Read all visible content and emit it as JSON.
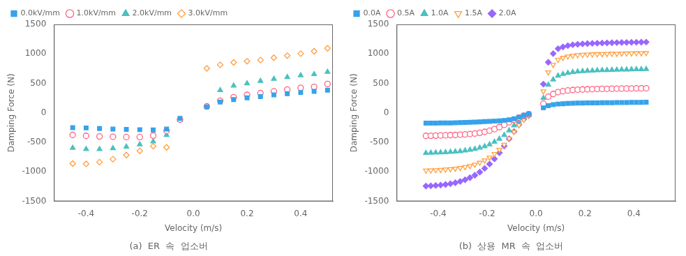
{
  "chart_data": [
    {
      "type": "scatter",
      "title": "(a)  ER  속  업소버",
      "x_label": "Velocity (m/s)",
      "y_label": "Damping Force (N)",
      "xlim": [
        -0.52,
        0.52
      ],
      "ylim": [
        -1500,
        1500
      ],
      "xticks": [
        -0.4,
        -0.2,
        {
          "value": 0,
          "label": "0.0"
        },
        0.2,
        0.4
      ],
      "yticks": [
        -1500,
        -1000,
        -500,
        0,
        500,
        1000,
        1500
      ],
      "grid": false,
      "legend": "upper left",
      "series": [
        {
          "name": "0.0kV/mm",
          "marker": "square_filled",
          "x": [
            -0.45,
            -0.4,
            -0.35,
            -0.3,
            -0.25,
            -0.2,
            -0.15,
            -0.1,
            -0.05,
            0.05,
            0.1,
            0.15,
            0.2,
            0.25,
            0.3,
            0.35,
            0.4,
            0.45,
            0.5
          ],
          "values": [
            -250,
            -255,
            -265,
            -275,
            -280,
            -285,
            -290,
            -275,
            -95,
            100,
            185,
            225,
            255,
            275,
            305,
            325,
            345,
            365,
            385
          ]
        },
        {
          "name": "1.0kV/mm",
          "marker": "circle_open",
          "x": [
            -0.45,
            -0.4,
            -0.35,
            -0.3,
            -0.25,
            -0.2,
            -0.15,
            -0.1,
            -0.05,
            0.05,
            0.1,
            0.15,
            0.2,
            0.25,
            0.3,
            0.35,
            0.4,
            0.45,
            0.5
          ],
          "values": [
            -375,
            -390,
            -400,
            -405,
            -410,
            -410,
            -385,
            -305,
            -115,
            110,
            205,
            265,
            305,
            335,
            365,
            395,
            425,
            440,
            490
          ]
        },
        {
          "name": "2.0kV/mm",
          "marker": "triangle_filled",
          "x": [
            -0.45,
            -0.4,
            -0.35,
            -0.3,
            -0.25,
            -0.2,
            -0.15,
            -0.1,
            -0.05,
            0.05,
            0.1,
            0.15,
            0.2,
            0.25,
            0.3,
            0.35,
            0.4,
            0.45,
            0.5
          ],
          "values": [
            -595,
            -615,
            -615,
            -600,
            -575,
            -535,
            -485,
            -375,
            -125,
            110,
            385,
            460,
            500,
            540,
            575,
            605,
            635,
            655,
            695
          ]
        },
        {
          "name": "3.0kV/mm",
          "marker": "diamond_open",
          "x": [
            -0.45,
            -0.4,
            -0.35,
            -0.3,
            -0.25,
            -0.2,
            -0.15,
            -0.1,
            0.05,
            0.1,
            0.15,
            0.2,
            0.25,
            0.3,
            0.35,
            0.4,
            0.45,
            0.5
          ],
          "values": [
            -860,
            -865,
            -835,
            -785,
            -715,
            -645,
            -565,
            -585,
            755,
            815,
            855,
            875,
            895,
            935,
            970,
            1005,
            1045,
            1095
          ]
        }
      ]
    },
    {
      "type": "scatter",
      "title": "(b)  상용  MR  속  업소버",
      "x_label": "Velocity (m/s)",
      "y_label": "Damping Force (N)",
      "xlim": [
        -0.57,
        0.57
      ],
      "ylim": [
        -1500,
        1500
      ],
      "xticks": [
        -0.4,
        -0.2,
        {
          "value": 0,
          "label": "0.0"
        },
        0.2,
        0.4
      ],
      "yticks": [
        -1500,
        -1000,
        -500,
        0,
        500,
        1000,
        1500
      ],
      "grid": false,
      "legend": "upper left",
      "series": [
        {
          "name": "0.0A",
          "marker": "square_filled",
          "x": [
            -0.45,
            -0.43,
            -0.41,
            -0.39,
            -0.37,
            -0.35,
            -0.33,
            -0.31,
            -0.29,
            -0.27,
            -0.25,
            -0.23,
            -0.21,
            -0.19,
            -0.17,
            -0.15,
            -0.13,
            -0.11,
            -0.09,
            -0.07,
            -0.05,
            -0.03,
            0.03,
            0.05,
            0.07,
            0.09,
            0.11,
            0.13,
            0.15,
            0.17,
            0.19,
            0.21,
            0.23,
            0.25,
            0.27,
            0.29,
            0.31,
            0.33,
            0.35,
            0.37,
            0.39,
            0.41,
            0.43,
            0.45
          ],
          "values": [
            -175,
            -175,
            -175,
            -172,
            -170,
            -170,
            -168,
            -165,
            -162,
            -158,
            -155,
            -152,
            -148,
            -145,
            -140,
            -135,
            -128,
            -118,
            -100,
            -72,
            -42,
            -18,
            85,
            122,
            140,
            150,
            155,
            160,
            163,
            165,
            167,
            168,
            169,
            170,
            171,
            172,
            173,
            174,
            175,
            176,
            177,
            178,
            179,
            180
          ]
        },
        {
          "name": "0.5A",
          "marker": "circle_open",
          "x": [
            -0.45,
            -0.43,
            -0.41,
            -0.39,
            -0.37,
            -0.35,
            -0.33,
            -0.31,
            -0.29,
            -0.27,
            -0.25,
            -0.23,
            -0.21,
            -0.19,
            -0.17,
            -0.15,
            -0.13,
            -0.11,
            -0.09,
            -0.07,
            -0.05,
            -0.03,
            0.03,
            0.05,
            0.07,
            0.09,
            0.11,
            0.13,
            0.15,
            0.17,
            0.19,
            0.21,
            0.23,
            0.25,
            0.27,
            0.29,
            0.31,
            0.33,
            0.35,
            0.37,
            0.39,
            0.41,
            0.43,
            0.45
          ],
          "values": [
            -390,
            -388,
            -385,
            -383,
            -380,
            -378,
            -375,
            -370,
            -365,
            -358,
            -350,
            -338,
            -322,
            -302,
            -275,
            -242,
            -202,
            -160,
            -118,
            -80,
            -48,
            -22,
            155,
            275,
            320,
            352,
            368,
            380,
            388,
            393,
            397,
            400,
            402,
            405,
            407,
            408,
            410,
            411,
            412,
            413,
            414,
            415,
            416,
            417
          ]
        },
        {
          "name": "1.0A",
          "marker": "triangle_filled",
          "x": [
            -0.45,
            -0.43,
            -0.41,
            -0.39,
            -0.37,
            -0.35,
            -0.33,
            -0.31,
            -0.29,
            -0.27,
            -0.25,
            -0.23,
            -0.21,
            -0.19,
            -0.17,
            -0.15,
            -0.13,
            -0.11,
            -0.09,
            -0.07,
            -0.05,
            -0.03,
            0.03,
            0.05,
            0.07,
            0.09,
            0.11,
            0.13,
            0.15,
            0.17,
            0.19,
            0.21,
            0.23,
            0.25,
            0.27,
            0.29,
            0.31,
            0.33,
            0.35,
            0.37,
            0.39,
            0.41,
            0.43,
            0.45
          ],
          "values": [
            -680,
            -678,
            -675,
            -672,
            -668,
            -663,
            -657,
            -650,
            -640,
            -628,
            -612,
            -592,
            -568,
            -535,
            -492,
            -440,
            -375,
            -298,
            -215,
            -138,
            -78,
            -35,
            252,
            475,
            565,
            630,
            658,
            678,
            692,
            700,
            706,
            712,
            716,
            720,
            723,
            725,
            727,
            730,
            732,
            734,
            736,
            738,
            740,
            742
          ]
        },
        {
          "name": "1.5A",
          "marker": "triangle_down_open",
          "x": [
            -0.45,
            -0.43,
            -0.41,
            -0.39,
            -0.37,
            -0.35,
            -0.33,
            -0.31,
            -0.29,
            -0.27,
            -0.25,
            -0.23,
            -0.21,
            -0.19,
            -0.17,
            -0.15,
            -0.13,
            -0.11,
            -0.09,
            -0.07,
            -0.05,
            -0.03,
            0.03,
            0.05,
            0.07,
            0.09,
            0.11,
            0.13,
            0.15,
            0.17,
            0.19,
            0.21,
            0.23,
            0.25,
            0.27,
            0.29,
            0.31,
            0.33,
            0.35,
            0.37,
            0.39,
            0.41,
            0.43,
            0.45
          ],
          "values": [
            -978,
            -975,
            -970,
            -965,
            -960,
            -953,
            -945,
            -933,
            -918,
            -900,
            -876,
            -845,
            -806,
            -758,
            -697,
            -625,
            -538,
            -436,
            -322,
            -210,
            -118,
            -52,
            365,
            688,
            815,
            900,
            935,
            958,
            970,
            980,
            986,
            991,
            994,
            997,
            999,
            1001,
            1003,
            1005,
            1007,
            1009,
            1010,
            1012,
            1013,
            1015
          ]
        },
        {
          "name": "2.0A",
          "marker": "diamond_filled",
          "x": [
            -0.45,
            -0.43,
            -0.41,
            -0.39,
            -0.37,
            -0.35,
            -0.33,
            -0.31,
            -0.29,
            -0.27,
            -0.25,
            -0.23,
            -0.21,
            -0.19,
            -0.17,
            -0.15,
            -0.13,
            -0.11,
            -0.09,
            -0.07,
            -0.05,
            -0.03,
            0.03,
            0.05,
            0.07,
            0.09,
            0.11,
            0.13,
            0.15,
            0.17,
            0.19,
            0.21,
            0.23,
            0.25,
            0.27,
            0.29,
            0.31,
            0.33,
            0.35,
            0.37,
            0.39,
            0.41,
            0.43,
            0.45
          ],
          "values": [
            -1242,
            -1238,
            -1232,
            -1225,
            -1215,
            -1202,
            -1185,
            -1163,
            -1135,
            -1100,
            -1058,
            -1005,
            -942,
            -868,
            -780,
            -678,
            -562,
            -440,
            -318,
            -200,
            -108,
            -48,
            488,
            858,
            1005,
            1088,
            1118,
            1140,
            1155,
            1163,
            1170,
            1175,
            1179,
            1182,
            1185,
            1187,
            1189,
            1191,
            1193,
            1194,
            1196,
            1197,
            1198,
            1200
          ]
        }
      ]
    }
  ]
}
